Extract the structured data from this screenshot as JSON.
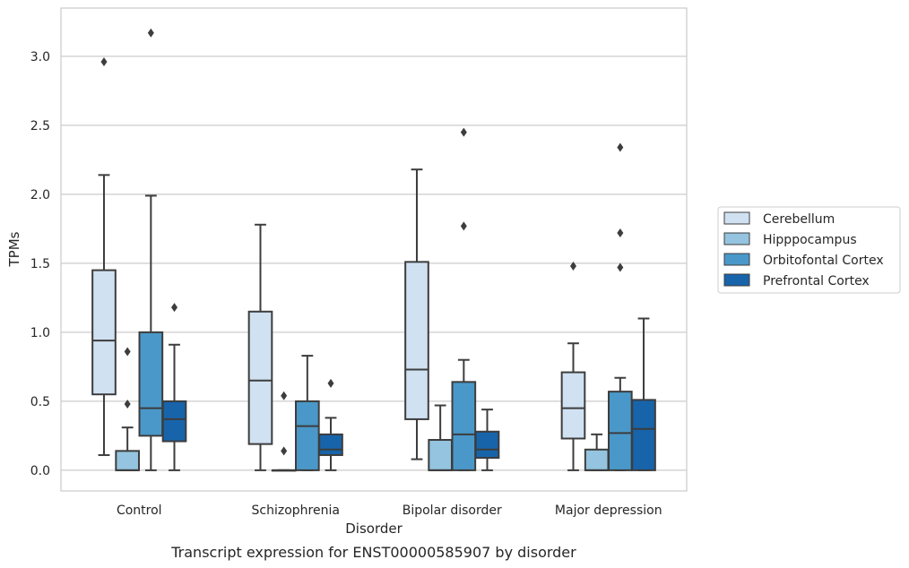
{
  "chart_data": {
    "type": "boxplot",
    "xlabel": "Disorder",
    "ylabel": "TPMs",
    "caption": "Transcript expression for ENST00000585907 by disorder",
    "ylim": [
      -0.15,
      3.35
    ],
    "yticks": [
      0.0,
      0.5,
      1.0,
      1.5,
      2.0,
      2.5,
      3.0
    ],
    "ytick_labels": [
      "0.0",
      "0.5",
      "1.0",
      "1.5",
      "2.0",
      "2.5",
      "3.0"
    ],
    "grid": "horizontal",
    "legend_position": "right",
    "categories": [
      "Control",
      "Schizophrenia",
      "Bipolar disorder",
      "Major depression"
    ],
    "series": [
      {
        "name": "Cerebellum",
        "color": "#d0e1f2",
        "boxes": [
          {
            "whislo": 0.11,
            "q1": 0.55,
            "med": 0.94,
            "q3": 1.45,
            "whishi": 2.14,
            "fliers": [
              2.96
            ]
          },
          {
            "whislo": 0.0,
            "q1": 0.19,
            "med": 0.65,
            "q3": 1.15,
            "whishi": 1.78,
            "fliers": []
          },
          {
            "whislo": 0.08,
            "q1": 0.37,
            "med": 0.73,
            "q3": 1.51,
            "whishi": 2.18,
            "fliers": []
          },
          {
            "whislo": 0.0,
            "q1": 0.23,
            "med": 0.45,
            "q3": 0.71,
            "whishi": 0.92,
            "fliers": [
              1.48
            ]
          }
        ]
      },
      {
        "name": "Hipppocampus",
        "color": "#94c4df",
        "boxes": [
          {
            "whislo": 0.0,
            "q1": 0.0,
            "med": 0.0,
            "q3": 0.14,
            "whishi": 0.31,
            "fliers": [
              0.48,
              0.86
            ]
          },
          {
            "whislo": 0.0,
            "q1": 0.0,
            "med": 0.0,
            "q3": 0.0,
            "whishi": 0.0,
            "fliers": [
              0.14,
              0.54
            ]
          },
          {
            "whislo": 0.0,
            "q1": 0.0,
            "med": 0.0,
            "q3": 0.22,
            "whishi": 0.47,
            "fliers": []
          },
          {
            "whislo": 0.0,
            "q1": 0.0,
            "med": 0.0,
            "q3": 0.15,
            "whishi": 0.26,
            "fliers": []
          }
        ]
      },
      {
        "name": "Orbitofontal Cortex",
        "color": "#4a98c9",
        "boxes": [
          {
            "whislo": 0.0,
            "q1": 0.25,
            "med": 0.45,
            "q3": 1.0,
            "whishi": 1.99,
            "fliers": [
              3.17
            ]
          },
          {
            "whislo": 0.0,
            "q1": 0.0,
            "med": 0.32,
            "q3": 0.5,
            "whishi": 0.83,
            "fliers": []
          },
          {
            "whislo": 0.0,
            "q1": 0.0,
            "med": 0.26,
            "q3": 0.64,
            "whishi": 0.8,
            "fliers": [
              1.77,
              2.45
            ]
          },
          {
            "whislo": 0.0,
            "q1": 0.0,
            "med": 0.27,
            "q3": 0.57,
            "whishi": 0.67,
            "fliers": [
              1.47,
              1.72,
              2.34
            ]
          }
        ]
      },
      {
        "name": "Prefrontal Cortex",
        "color": "#1764ab",
        "boxes": [
          {
            "whislo": 0.0,
            "q1": 0.21,
            "med": 0.37,
            "q3": 0.5,
            "whishi": 0.91,
            "fliers": [
              1.18
            ]
          },
          {
            "whislo": 0.0,
            "q1": 0.11,
            "med": 0.15,
            "q3": 0.26,
            "whishi": 0.38,
            "fliers": [
              0.63
            ]
          },
          {
            "whislo": 0.0,
            "q1": 0.09,
            "med": 0.15,
            "q3": 0.28,
            "whishi": 0.44,
            "fliers": []
          },
          {
            "whislo": 0.0,
            "q1": 0.0,
            "med": 0.3,
            "q3": 0.51,
            "whishi": 1.1,
            "fliers": []
          }
        ]
      }
    ]
  }
}
